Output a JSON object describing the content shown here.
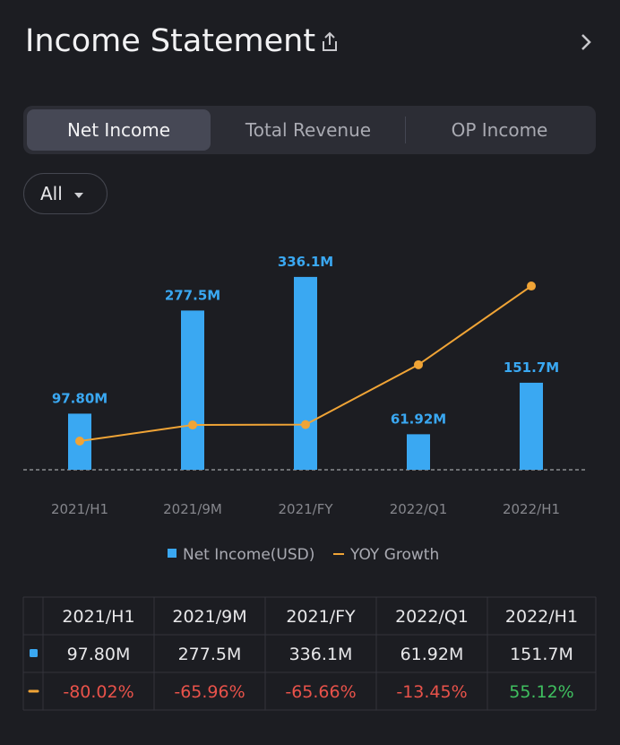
{
  "header": {
    "title": "Income Statement"
  },
  "tabs": [
    "Net Income",
    "Total Revenue",
    "OP Income"
  ],
  "active_tab": 0,
  "filter": "All",
  "chart_data": {
    "type": "bar",
    "categories": [
      "2021/H1",
      "2021/9M",
      "2021/FY",
      "2022/Q1",
      "2022/H1"
    ],
    "series": [
      {
        "name": "Net Income(USD)",
        "type": "bar",
        "color": "#3aa8f2",
        "values": [
          97.8,
          277.5,
          336.1,
          61.92,
          151.7
        ],
        "value_labels": [
          "97.80M",
          "277.5M",
          "336.1M",
          "61.92M",
          "151.7M"
        ]
      },
      {
        "name": "YOY Growth",
        "type": "line",
        "axis": "y2",
        "color": "#f0a436",
        "values": [
          -80.02,
          -65.96,
          -65.66,
          -13.45,
          55.12
        ],
        "value_labels": [
          "-80.02%",
          "-65.96%",
          "-65.66%",
          "-13.45%",
          "55.12%"
        ]
      }
    ],
    "ylim": [
      0,
      400
    ],
    "y2lim": [
      -105,
      95
    ],
    "legend": "bottom"
  }
}
